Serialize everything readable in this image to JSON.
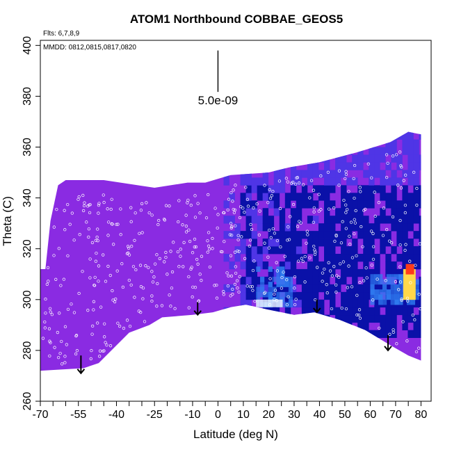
{
  "chart_data": {
    "type": "heatmap",
    "title": "ATOM1 Northbound COBBAE_GEOS5",
    "flights_label": "Flts: 6,7,8,9",
    "dates_label": "MMDD: 0812,0815,0817,0820",
    "xlabel": "Latitude (deg N)",
    "ylabel": "Theta (C)",
    "xlim": [
      -70,
      84
    ],
    "ylim": [
      260,
      402
    ],
    "x_ticks_labeled": [
      -70,
      -55,
      -40,
      -25,
      -10,
      0,
      10,
      20,
      30,
      40,
      50,
      60,
      70,
      80
    ],
    "x_ticks_minor": [
      -65,
      -60,
      -50,
      -45,
      -35,
      -30,
      -20,
      -15,
      -5,
      5,
      15,
      25,
      35,
      45,
      55,
      65,
      75
    ],
    "y_ticks": [
      260,
      280,
      300,
      320,
      340,
      360,
      380,
      400
    ],
    "scale_bar": {
      "label": "5.0e-09",
      "x": 0,
      "y_top": 398,
      "y_bottom": 385
    },
    "colors": {
      "background": "#8a2be2",
      "mid": "#4f35e6",
      "dark": "#0a11a8",
      "light": "#2f7bf0",
      "hot_yellow": "#ffd84a",
      "hot_red": "#ff3b1a"
    },
    "surface_boundary": [
      [
        -70,
        272
      ],
      [
        -53,
        273
      ],
      [
        -47,
        275
      ],
      [
        -35,
        287
      ],
      [
        -27,
        290
      ],
      [
        -22,
        293
      ],
      [
        -10,
        294
      ],
      [
        -2,
        295
      ],
      [
        5,
        297
      ],
      [
        11,
        298
      ],
      [
        20,
        296
      ],
      [
        30,
        294
      ],
      [
        38,
        295
      ],
      [
        48,
        292
      ],
      [
        58,
        288
      ],
      [
        68,
        282
      ],
      [
        75,
        278
      ],
      [
        80,
        276
      ]
    ],
    "top_boundary": [
      [
        -70,
        312
      ],
      [
        -68,
        312
      ],
      [
        -66,
        331
      ],
      [
        -63,
        345
      ],
      [
        -60,
        347
      ],
      [
        -45,
        347
      ],
      [
        -25,
        344
      ],
      [
        -12,
        346
      ],
      [
        -5,
        346
      ],
      [
        5,
        349
      ],
      [
        20,
        350
      ],
      [
        28,
        352
      ],
      [
        40,
        354
      ],
      [
        55,
        358
      ],
      [
        68,
        362
      ],
      [
        75,
        366
      ],
      [
        80,
        365
      ]
    ],
    "flight_descent_arrows": [
      {
        "x": -54,
        "y_top": 278,
        "y_bottom": 271
      },
      {
        "x": -8,
        "y_top": 299,
        "y_bottom": 294
      },
      {
        "x": 39,
        "y_top": 300,
        "y_bottom": 295
      },
      {
        "x": 67,
        "y_top": 286,
        "y_bottom": 280
      }
    ],
    "high_concentration_regions": [
      {
        "x": [
          15,
          28
        ],
        "y": [
          297,
          312
        ],
        "level": "light"
      },
      {
        "x": [
          60,
          78
        ],
        "y": [
          298,
          310
        ],
        "level": "light"
      },
      {
        "x": [
          73,
          77
        ],
        "y": [
          300,
          312
        ],
        "level": "hot_yellow"
      },
      {
        "x": [
          74,
          76
        ],
        "y": [
          310,
          313
        ],
        "level": "hot_red"
      },
      {
        "x": [
          8,
          60
        ],
        "y": [
          295,
          345
        ],
        "level": "dark"
      }
    ]
  }
}
